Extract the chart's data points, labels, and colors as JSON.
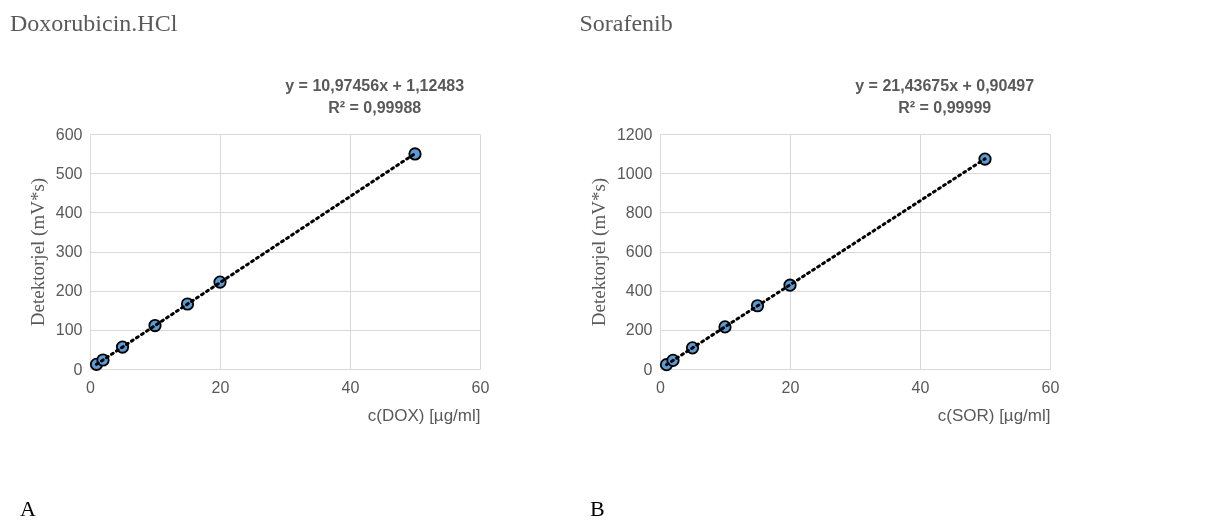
{
  "chart_data": [
    {
      "type": "scatter",
      "title": "Doxorubicin.HCl",
      "xlabel": "c(DOX) [µg/ml]",
      "ylabel": "Detektorjel (mV*s)",
      "annotations": [
        "y = 10,97456x + 1,12483",
        "R² = 0,99988",
        "A"
      ],
      "xlim": [
        0,
        60
      ],
      "xticks": [
        0,
        20,
        40,
        60
      ],
      "ylim": [
        0,
        600
      ],
      "yticks": [
        0,
        100,
        200,
        300,
        400,
        500,
        600
      ],
      "grid": true,
      "marker": "circle",
      "series": [
        {
          "type": "scatter",
          "color": "#5b9bd5",
          "x": [
            1,
            2,
            5,
            10,
            15,
            20,
            50
          ],
          "values": [
            12,
            23,
            56,
            111,
            166,
            222,
            549
          ]
        },
        {
          "type": "line",
          "color": "#000000",
          "line_style": "dotted",
          "marker": "none",
          "x": [
            1,
            50
          ],
          "values": [
            12,
            550
          ]
        }
      ]
    },
    {
      "type": "scatter",
      "title": "Sorafenib",
      "xlabel": "c(SOR) [µg/ml]",
      "ylabel": "Detektorjel (mV*s)",
      "annotations": [
        "y = 21,43675x + 0,90497",
        "R² = 0,99999",
        "B"
      ],
      "xlim": [
        0,
        60
      ],
      "xticks": [
        0,
        20,
        40,
        60
      ],
      "ylim": [
        0,
        1200
      ],
      "yticks": [
        0,
        200,
        400,
        600,
        800,
        1000,
        1200
      ],
      "grid": true,
      "marker": "circle",
      "series": [
        {
          "type": "scatter",
          "color": "#5b9bd5",
          "x": [
            1,
            2,
            5,
            10,
            15,
            20,
            50
          ],
          "values": [
            22,
            44,
            108,
            215,
            323,
            428,
            1072
          ]
        },
        {
          "type": "line",
          "color": "#000000",
          "line_style": "dotted",
          "marker": "none",
          "x": [
            1,
            50
          ],
          "values": [
            22,
            1073
          ]
        }
      ]
    }
  ]
}
